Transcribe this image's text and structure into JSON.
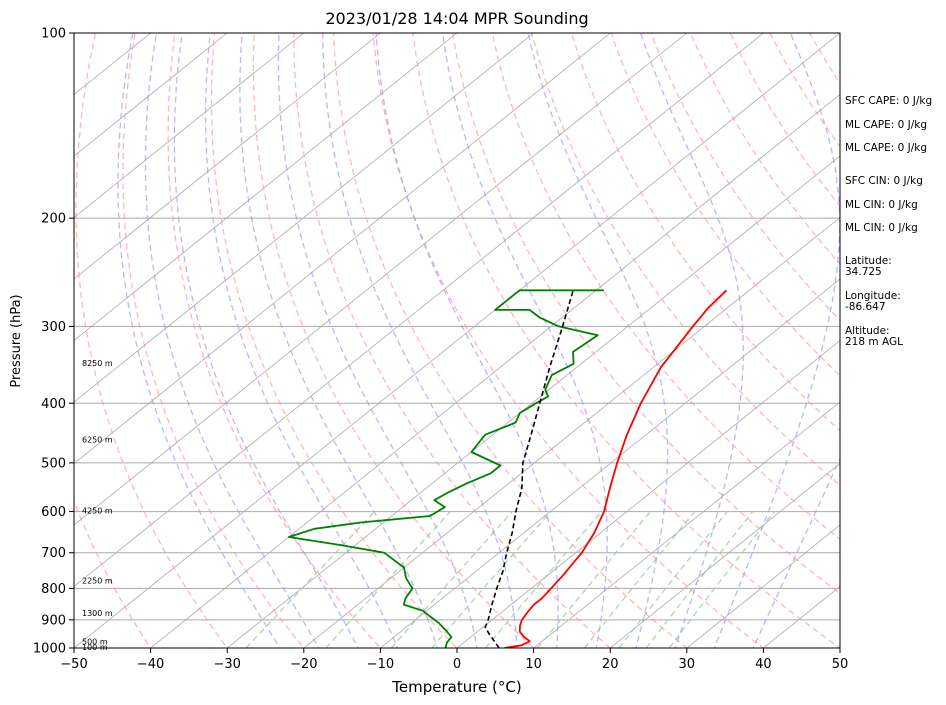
{
  "chart_data": {
    "type": "skew-t",
    "title": "2023/01/28 14:04 MPR Sounding",
    "xlabel": "Temperature (°C)",
    "ylabel": "Pressure (hPa)",
    "xlim": [
      -50,
      50
    ],
    "ylim": [
      1000,
      100
    ],
    "y_scale": "log",
    "x_ticks": [
      "−50",
      "−40",
      "−30",
      "−20",
      "−10",
      "0",
      "10",
      "20",
      "30",
      "40",
      "50"
    ],
    "y_ticks": [
      {
        "p": 100,
        "label": "100"
      },
      {
        "p": 200,
        "label": "200"
      },
      {
        "p": 300,
        "label": "300"
      },
      {
        "p": 400,
        "label": "400"
      },
      {
        "p": 500,
        "label": "500"
      },
      {
        "p": 600,
        "label": "600"
      },
      {
        "p": 700,
        "label": "700"
      },
      {
        "p": 800,
        "label": "800"
      },
      {
        "p": 900,
        "label": "900"
      },
      {
        "p": 1000,
        "label": "1000"
      }
    ],
    "height_labels": [
      {
        "p": 1000,
        "label": "100 m"
      },
      {
        "p": 980,
        "label": "500 m"
      },
      {
        "p": 880,
        "label": "1300 m"
      },
      {
        "p": 780,
        "label": "2250 m"
      },
      {
        "p": 600,
        "label": "4250 m"
      },
      {
        "p": 460,
        "label": "6250 m"
      },
      {
        "p": 345,
        "label": "8250 m"
      }
    ],
    "series": [
      {
        "kind": "temperature",
        "color": "#ff0000",
        "points": [
          [
            1000,
            6.2
          ],
          [
            990,
            8.0
          ],
          [
            975,
            8.4
          ],
          [
            960,
            7.0
          ],
          [
            940,
            5.5
          ],
          [
            920,
            4.6
          ],
          [
            900,
            3.9
          ],
          [
            870,
            3.3
          ],
          [
            850,
            3.0
          ],
          [
            830,
            3.0
          ],
          [
            800,
            2.6
          ],
          [
            760,
            2.0
          ],
          [
            730,
            1.4
          ],
          [
            700,
            0.8
          ],
          [
            650,
            -0.8
          ],
          [
            600,
            -3.0
          ],
          [
            550,
            -6.0
          ],
          [
            500,
            -9.2
          ],
          [
            450,
            -12.5
          ],
          [
            400,
            -15.8
          ],
          [
            350,
            -19.0
          ],
          [
            300,
            -21.5
          ],
          [
            280,
            -22.5
          ],
          [
            262,
            -23.0
          ]
        ]
      },
      {
        "kind": "dewpoint",
        "color": "#008000",
        "points": [
          [
            1000,
            -1.5
          ],
          [
            980,
            -2.2
          ],
          [
            960,
            -2.5
          ],
          [
            940,
            -4.0
          ],
          [
            910,
            -6.5
          ],
          [
            890,
            -8.5
          ],
          [
            870,
            -10.5
          ],
          [
            850,
            -14.0
          ],
          [
            830,
            -14.8
          ],
          [
            800,
            -15.5
          ],
          [
            770,
            -18.0
          ],
          [
            740,
            -20.0
          ],
          [
            700,
            -25.0
          ],
          [
            680,
            -32.0
          ],
          [
            660,
            -40.0
          ],
          [
            640,
            -38.0
          ],
          [
            625,
            -33.0
          ],
          [
            610,
            -25.0
          ],
          [
            590,
            -24.5
          ],
          [
            575,
            -27.0
          ],
          [
            560,
            -26.5
          ],
          [
            540,
            -25.5
          ],
          [
            520,
            -24.0
          ],
          [
            505,
            -24.0
          ],
          [
            480,
            -30.0
          ],
          [
            450,
            -31.0
          ],
          [
            430,
            -29.0
          ],
          [
            415,
            -30.0
          ],
          [
            400,
            -29.5
          ],
          [
            390,
            -29.0
          ],
          [
            380,
            -30.5
          ],
          [
            360,
            -32.0
          ],
          [
            345,
            -31.0
          ],
          [
            330,
            -33.0
          ],
          [
            310,
            -32.5
          ],
          [
            300,
            -39.0
          ],
          [
            290,
            -43.0
          ],
          [
            282,
            -45.5
          ],
          [
            282,
            -50.0
          ],
          [
            262,
            -50.0
          ],
          [
            262,
            -39.0
          ]
        ]
      },
      {
        "kind": "parcel",
        "color": "#000000",
        "style": "dashed",
        "points": [
          [
            1000,
            5.5
          ],
          [
            950,
            2.0
          ],
          [
            925,
            0.3
          ],
          [
            900,
            -0.5
          ],
          [
            850,
            -2.5
          ],
          [
            800,
            -4.5
          ],
          [
            750,
            -6.5
          ],
          [
            700,
            -9.0
          ],
          [
            650,
            -11.5
          ],
          [
            600,
            -14.5
          ],
          [
            550,
            -17.5
          ],
          [
            500,
            -21.5
          ],
          [
            450,
            -25.0
          ],
          [
            400,
            -29.0
          ],
          [
            350,
            -33.5
          ],
          [
            300,
            -38.5
          ],
          [
            262,
            -43.0
          ]
        ]
      }
    ],
    "side_info": [
      "SFC CAPE: 0 J/kg",
      "ML CAPE: 0 J/kg",
      "ML CAPE: 0 J/kg",
      "SFC CIN: 0 J/kg",
      "ML CIN: 0 J/kg",
      "ML CIN: 0 J/kg",
      "Latitude:",
      "34.725",
      "Longitude:",
      "-86.647",
      "Altitude:",
      "218 m AGL"
    ],
    "colors": {
      "dry_adiabats": "#ff9999",
      "moist_adiabats": "#9999ff",
      "mixing_ratio": "#99cc99",
      "isotherms": "#aaaaaa",
      "isobars": "#aaaaaa"
    }
  }
}
